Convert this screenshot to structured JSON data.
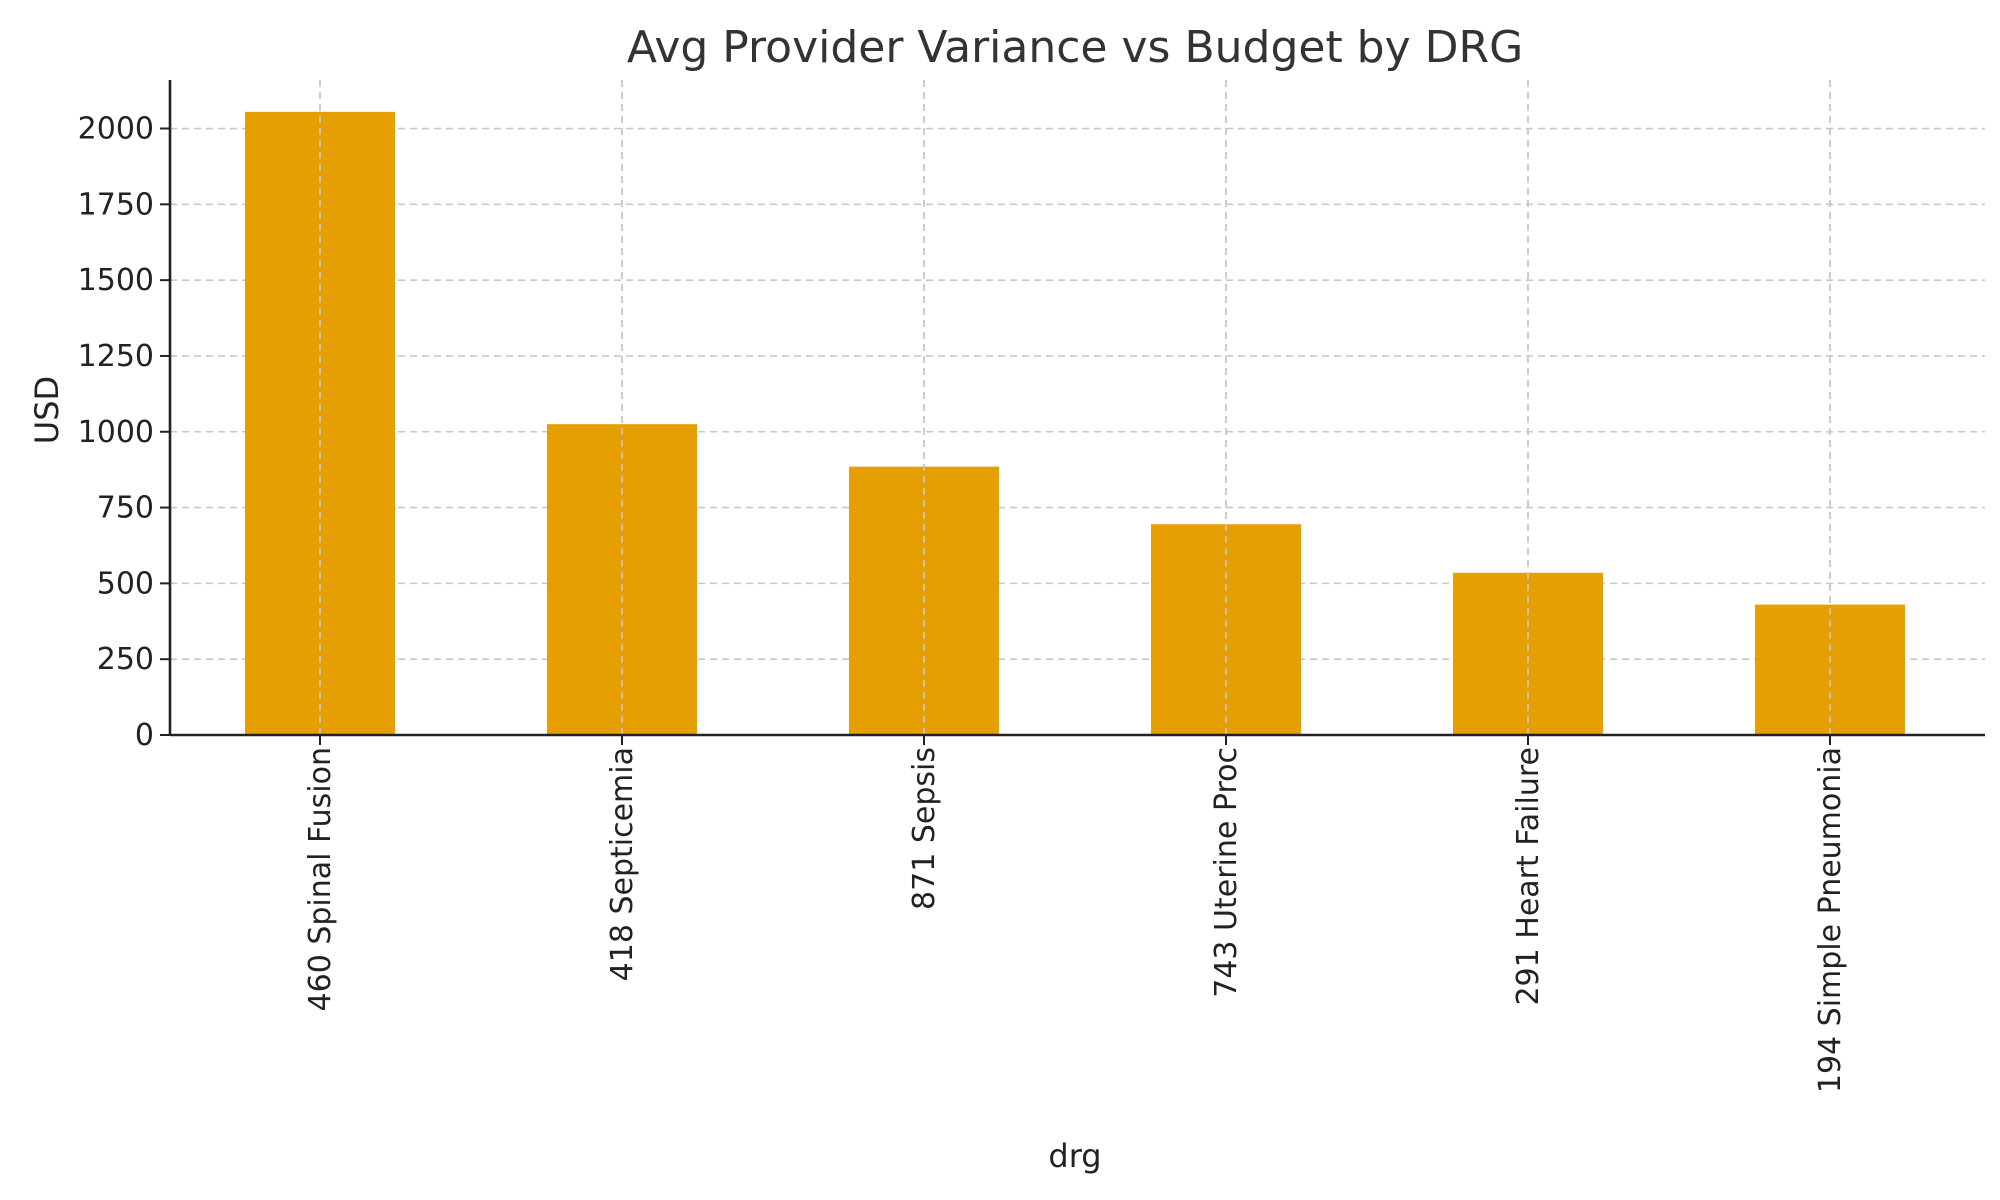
{
  "chart_data": {
    "type": "bar",
    "title": "Avg Provider Variance vs Budget by DRG",
    "xlabel": "drg",
    "ylabel": "USD",
    "categories": [
      "460 Spinal Fusion",
      "418 Septicemia",
      "871 Sepsis",
      "743 Uterine Proc",
      "291 Heart Failure",
      "194 Simple Pneumonia"
    ],
    "values": [
      2055,
      1025,
      885,
      695,
      535,
      430
    ],
    "ylim": [
      0,
      2160
    ],
    "yticks": [
      0,
      250,
      500,
      750,
      1000,
      1250,
      1500,
      1750,
      2000
    ],
    "ytick_labels": [
      "0",
      "250",
      "500",
      "750",
      "1000",
      "1250",
      "1500",
      "1750",
      "2000"
    ],
    "grid": true,
    "bar_color": "#E69F00"
  }
}
